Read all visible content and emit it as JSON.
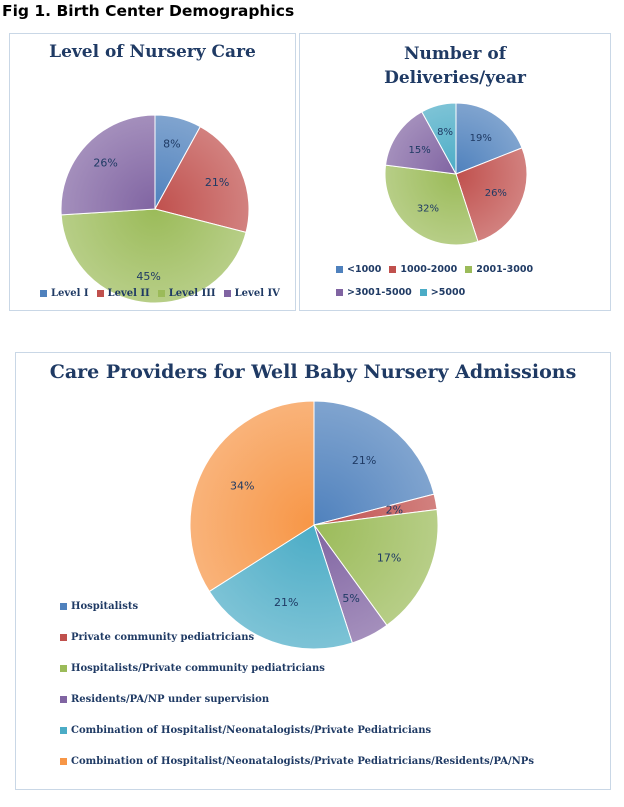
{
  "figure_title": "Fig 1. Birth Center Demographics",
  "chart_data": [
    {
      "type": "pie",
      "title": "Level of Nursery Care",
      "categories": [
        "Level I",
        "Level II",
        "Level III",
        "Level IV"
      ],
      "values": [
        8,
        21,
        45,
        26
      ],
      "labels": [
        "8%",
        "21%",
        "45%",
        "26%"
      ],
      "colors": [
        "#4f81bd",
        "#c0504d",
        "#9bbb59",
        "#8064a2"
      ],
      "legend": "bottom"
    },
    {
      "type": "pie",
      "title": "Number of\nDeliveries/year",
      "categories": [
        "<1000",
        "1000-2000",
        "2001-3000",
        ">3001-5000",
        ">5000"
      ],
      "values": [
        19,
        26,
        32,
        15,
        8
      ],
      "labels": [
        "19%",
        "26%",
        "32%",
        "15%",
        "8%"
      ],
      "colors": [
        "#4f81bd",
        "#c0504d",
        "#9bbb59",
        "#8064a2",
        "#4bacc6"
      ],
      "legend": "bottom"
    },
    {
      "type": "pie",
      "title": "Care Providers for Well Baby Nursery Admissions",
      "categories": [
        "Hospitalists",
        "Private community pediatricians",
        "Hospitalists/Private community pediatricians",
        "Residents/PA/NP under supervision",
        "Combination of Hospitalist/Neonatalogists/Private Pediatricians",
        "Combination of Hospitalist/Neonatalogists/Private Pediatricians/Residents/PA/NPs"
      ],
      "values": [
        21,
        2,
        17,
        5,
        21,
        34
      ],
      "labels": [
        "21%",
        "2%",
        "17%",
        "5%",
        "21%",
        "34%"
      ],
      "colors": [
        "#4f81bd",
        "#c0504d",
        "#9bbb59",
        "#8064a2",
        "#4bacc6",
        "#f79646"
      ],
      "legend": "bottom"
    }
  ]
}
